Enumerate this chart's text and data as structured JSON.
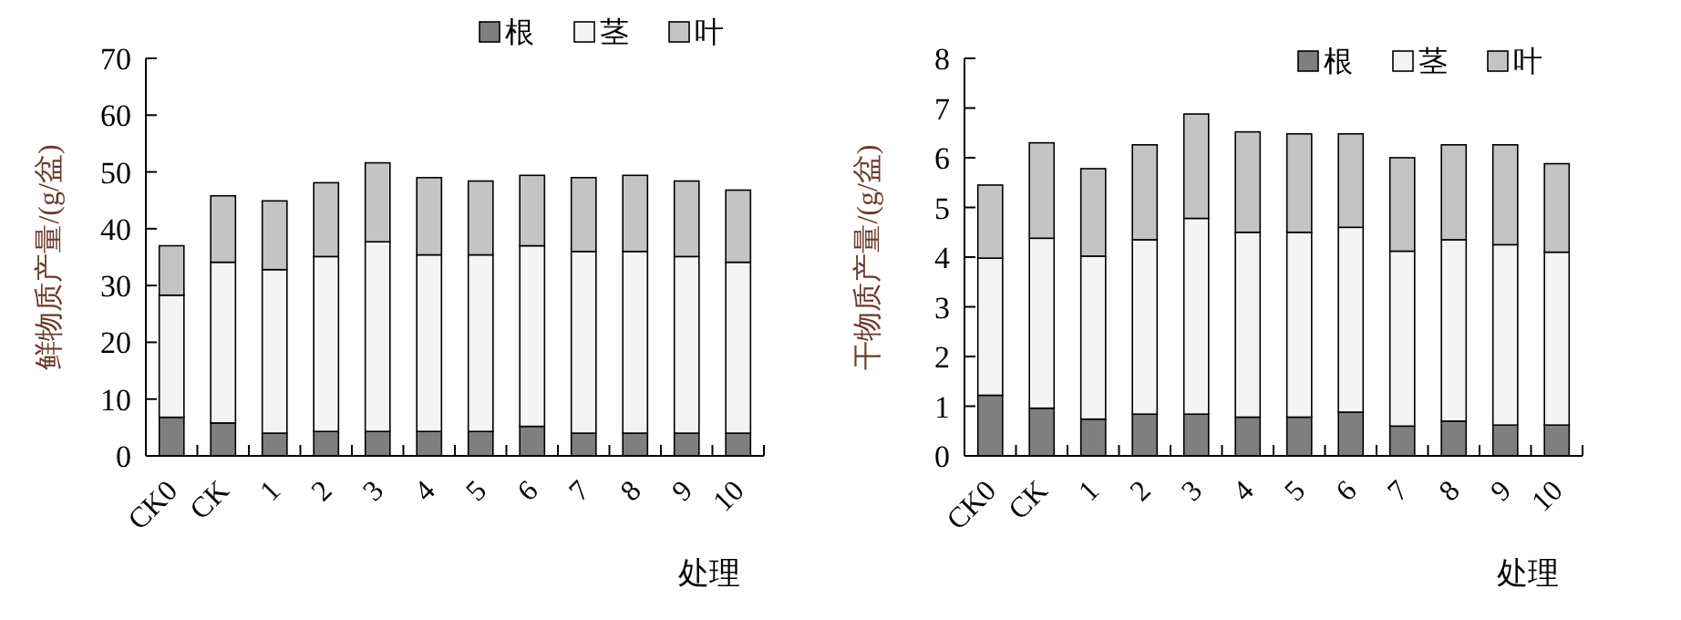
{
  "chart_data": [
    {
      "type": "bar",
      "stacked": true,
      "ylabel": "鲜物质产量/(g/盆)",
      "xlabel": "处理",
      "categories": [
        "CK0",
        "CK",
        "1",
        "2",
        "3",
        "4",
        "5",
        "6",
        "7",
        "8",
        "9",
        "10"
      ],
      "ylim": [
        0,
        70
      ],
      "yticks": [
        0,
        10,
        20,
        30,
        40,
        50,
        60,
        70
      ],
      "legend": "top right",
      "grid": false,
      "series": [
        {
          "name": "根",
          "color": "#7f7f7f",
          "values": [
            6.8,
            5.8,
            4.0,
            4.3,
            4.3,
            4.3,
            4.3,
            5.2,
            4.0,
            4.0,
            4.0,
            4.0
          ]
        },
        {
          "name": "茎",
          "color": "#f4f4f4",
          "values": [
            21.5,
            28.3,
            28.8,
            30.8,
            33.4,
            31.1,
            31.1,
            31.8,
            32.0,
            32.0,
            31.1,
            30.1
          ]
        },
        {
          "name": "叶",
          "color": "#c4c4c4",
          "values": [
            8.7,
            11.7,
            12.1,
            13.0,
            13.9,
            13.6,
            13.0,
            12.4,
            13.0,
            13.4,
            13.3,
            12.7
          ]
        }
      ]
    },
    {
      "type": "bar",
      "stacked": true,
      "ylabel": "干物质产量/(g/盆)",
      "xlabel": "处理",
      "categories": [
        "CK0",
        "CK",
        "1",
        "2",
        "3",
        "4",
        "5",
        "6",
        "7",
        "8",
        "9",
        "10"
      ],
      "ylim": [
        0,
        8
      ],
      "yticks": [
        0,
        1,
        2,
        3,
        4,
        5,
        6,
        7,
        8
      ],
      "legend": "top right",
      "grid": false,
      "series": [
        {
          "name": "根",
          "color": "#7f7f7f",
          "values": [
            1.22,
            0.96,
            0.74,
            0.84,
            0.84,
            0.78,
            0.78,
            0.88,
            0.6,
            0.7,
            0.62,
            0.62
          ]
        },
        {
          "name": "茎",
          "color": "#f4f4f4",
          "values": [
            2.76,
            3.42,
            3.28,
            3.51,
            3.94,
            3.72,
            3.72,
            3.72,
            3.52,
            3.65,
            3.63,
            3.48
          ]
        },
        {
          "name": "叶",
          "color": "#c4c4c4",
          "values": [
            1.47,
            1.92,
            1.76,
            1.91,
            2.1,
            2.02,
            1.98,
            1.88,
            1.88,
            1.91,
            2.01,
            1.78
          ]
        }
      ]
    }
  ]
}
